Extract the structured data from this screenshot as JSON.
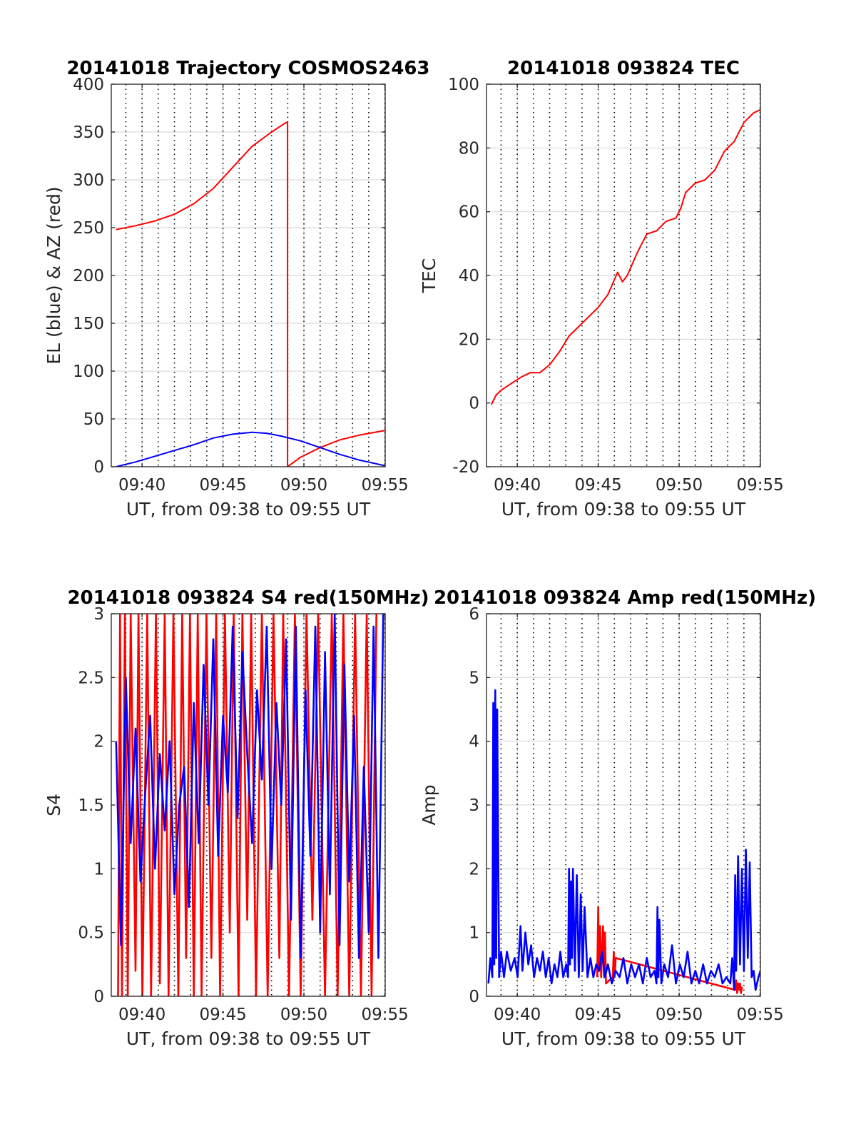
{
  "figure": {
    "colors": {
      "red": "#ff0000",
      "blue": "#0000ff",
      "grid": "#dcdcdc",
      "axis": "#262626"
    }
  },
  "chart_data": [
    {
      "id": "trajectory",
      "type": "line",
      "title": "20141018 Trajectory COSMOS2463",
      "xlabel": "UT, from 09:38 to 09:55 UT",
      "ylabel": "EL (blue) & AZ (red)",
      "xlim": [
        9.635,
        9.917
      ],
      "ylim": [
        0,
        400
      ],
      "yticks": [
        0,
        50,
        100,
        150,
        200,
        250,
        300,
        350,
        400
      ],
      "xticks": [
        9.6667,
        9.75,
        9.8333,
        9.9167
      ],
      "xticklabels": [
        "09:40",
        "09:45",
        "09:50",
        "09:55"
      ],
      "grid": true,
      "series": [
        {
          "color": "#ff0000",
          "role": "AZ",
          "x": [
            9.64,
            9.66,
            9.68,
            9.7,
            9.72,
            9.74,
            9.76,
            9.78,
            9.8,
            9.815,
            9.8165,
            9.8165,
            9.83,
            9.85,
            9.87,
            9.89,
            9.917
          ],
          "y": [
            248,
            252,
            257,
            264,
            275,
            291,
            313,
            335,
            350,
            360,
            360,
            0,
            10,
            20,
            28,
            33,
            38
          ]
        },
        {
          "color": "#0000ff",
          "role": "EL",
          "x": [
            9.64,
            9.66,
            9.68,
            9.7,
            9.72,
            9.74,
            9.76,
            9.78,
            9.795,
            9.81,
            9.83,
            9.85,
            9.87,
            9.89,
            9.917
          ],
          "y": [
            0,
            5,
            11,
            17,
            23,
            30,
            34,
            36,
            35,
            32,
            27,
            20,
            13,
            7,
            1
          ]
        }
      ]
    },
    {
      "id": "tec",
      "type": "line",
      "title": "20141018 093824 TEC",
      "xlabel": "UT, from 09:38 to 09:55 UT",
      "ylabel": "TEC",
      "xlim": [
        9.635,
        9.917
      ],
      "ylim": [
        -20,
        100
      ],
      "yticks": [
        -20,
        0,
        20,
        40,
        60,
        80,
        100
      ],
      "xticks": [
        9.6667,
        9.75,
        9.8333,
        9.9167
      ],
      "xticklabels": [
        "09:40",
        "09:45",
        "09:50",
        "09:55"
      ],
      "grid": true,
      "series": [
        {
          "color": "#ff0000",
          "x": [
            9.64,
            9.645,
            9.65,
            9.66,
            9.67,
            9.68,
            9.69,
            9.7,
            9.71,
            9.72,
            9.73,
            9.74,
            9.75,
            9.76,
            9.77,
            9.775,
            9.78,
            9.79,
            9.8,
            9.81,
            9.82,
            9.83,
            9.835,
            9.84,
            9.85,
            9.86,
            9.87,
            9.88,
            9.89,
            9.9,
            9.91,
            9.917
          ],
          "y": [
            -0.5,
            2.5,
            4,
            6,
            8,
            9.5,
            9.5,
            12,
            16,
            21,
            24,
            27,
            30,
            34,
            41,
            38,
            40,
            47,
            53,
            54,
            57,
            58,
            61,
            66,
            69,
            70,
            73,
            79,
            82,
            88,
            91,
            92
          ]
        }
      ]
    },
    {
      "id": "s4",
      "type": "line",
      "title": "20141018 093824 S4 red(150MHz)",
      "xlabel": "UT, from 09:38 to 09:55 UT",
      "ylabel": "S4",
      "xlim": [
        9.635,
        9.917
      ],
      "ylim": [
        0,
        3
      ],
      "yticks": [
        0,
        0.5,
        1,
        1.5,
        2,
        2.5,
        3
      ],
      "xticks": [
        9.6667,
        9.75,
        9.8333,
        9.9167
      ],
      "xticklabels": [
        "09:40",
        "09:45",
        "09:50",
        "09:55"
      ],
      "grid": true,
      "series": [
        {
          "color": "#ff0000",
          "x": [
            9.642,
            9.644,
            9.646,
            9.649,
            9.652,
            9.655,
            9.66,
            9.663,
            9.667,
            9.672,
            9.676,
            9.681,
            9.685,
            9.69,
            9.694,
            9.699,
            9.704,
            9.708,
            9.712,
            9.716,
            9.72,
            9.724,
            9.728,
            9.733,
            9.738,
            9.743,
            9.747,
            9.752,
            9.757,
            9.761,
            9.766,
            9.77,
            9.775,
            9.779,
            9.784,
            9.79,
            9.796,
            9.802,
            9.808,
            9.812,
            9.818,
            9.824,
            9.83,
            9.836,
            9.842,
            9.848,
            9.855,
            9.862,
            9.868,
            9.874,
            9.88,
            9.886,
            9.892,
            9.898,
            9.903,
            9.908
          ],
          "y": [
            0,
            3,
            0,
            3,
            0,
            3,
            0.2,
            3,
            0,
            3,
            0,
            3,
            0.1,
            3,
            0,
            3,
            0,
            3,
            0.3,
            3,
            0,
            3,
            0,
            3,
            0.3,
            3,
            0,
            3,
            0.5,
            3,
            0,
            3,
            0.6,
            3,
            0,
            3,
            0,
            3,
            0.3,
            3,
            0,
            3,
            0,
            3,
            0.6,
            3,
            0,
            3,
            0,
            3,
            0,
            3,
            0,
            3,
            0,
            3
          ]
        },
        {
          "color": "#0000ff",
          "x": [
            9.64,
            9.645,
            9.65,
            9.655,
            9.66,
            9.665,
            9.67,
            9.675,
            9.68,
            9.685,
            9.69,
            9.695,
            9.7,
            9.705,
            9.71,
            9.715,
            9.72,
            9.725,
            9.73,
            9.735,
            9.74,
            9.745,
            9.75,
            9.755,
            9.76,
            9.765,
            9.77,
            9.775,
            9.78,
            9.785,
            9.79,
            9.795,
            9.8,
            9.805,
            9.81,
            9.815,
            9.82,
            9.825,
            9.83,
            9.835,
            9.84,
            9.845,
            9.85,
            9.855,
            9.86,
            9.865,
            9.87,
            9.875,
            9.88,
            9.885,
            9.89,
            9.895,
            9.9,
            9.905,
            9.91,
            9.915
          ],
          "y": [
            2.0,
            0.4,
            2.5,
            1.2,
            2.1,
            0.9,
            1.6,
            2.2,
            1.0,
            1.9,
            1.3,
            2.0,
            0.8,
            1.5,
            1.8,
            0.7,
            2.3,
            1.2,
            2.6,
            1.5,
            2.8,
            1.1,
            2.2,
            1.6,
            2.9,
            1.4,
            2.7,
            1.9,
            1.2,
            2.4,
            1.7,
            2.9,
            1.0,
            2.3,
            1.5,
            2.8,
            0.6,
            2.9,
            0.3,
            2.4,
            1.1,
            2.9,
            0.5,
            2.7,
            0.8,
            3.0,
            0.4,
            2.6,
            0.9,
            2.2,
            0.3,
            1.8,
            0.5,
            2.9,
            0.3,
            3.0
          ]
        }
      ]
    },
    {
      "id": "amp",
      "type": "line",
      "title": "20141018 093824 Amp red(150MHz)",
      "xlabel": "UT, from 09:38 to 09:55 UT",
      "ylabel": "Amp",
      "xlim": [
        9.635,
        9.917
      ],
      "ylim": [
        0,
        6
      ],
      "yticks": [
        0,
        1,
        2,
        3,
        4,
        5,
        6
      ],
      "xticks": [
        9.6667,
        9.75,
        9.8333,
        9.9167
      ],
      "xticklabels": [
        "09:40",
        "09:45",
        "09:50",
        "09:55"
      ],
      "grid": true,
      "series": [
        {
          "color": "#ff0000",
          "x": [
            9.749,
            9.75,
            9.751,
            9.752,
            9.753,
            9.755,
            9.756,
            9.757,
            9.758,
            9.765,
            9.766,
            9.767,
            9.768,
            9.891,
            9.892,
            9.893,
            9.894,
            9.895,
            9.896,
            9.897,
            9.898
          ],
          "y": [
            0.3,
            1.4,
            0.4,
            1.1,
            0.3,
            1.1,
            0.3,
            1.0,
            0.2,
            0.3,
            0.7,
            0.3,
            0.6,
            0.1,
            0.25,
            0.05,
            0.2,
            0.1,
            0.2,
            0.05,
            0.15
          ]
        },
        {
          "color": "#0000ff",
          "x": [
            9.637,
            9.639,
            9.641,
            9.642,
            9.643,
            9.644,
            9.645,
            9.646,
            9.648,
            9.65,
            9.653,
            9.656,
            9.66,
            9.664,
            9.667,
            9.67,
            9.672,
            9.675,
            9.678,
            9.681,
            9.684,
            9.687,
            9.69,
            9.693,
            9.696,
            9.699,
            9.702,
            9.705,
            9.708,
            9.711,
            9.714,
            9.717,
            9.719,
            9.72,
            9.721,
            9.722,
            9.723,
            9.724,
            9.726,
            9.728,
            9.73,
            9.732,
            9.734,
            9.736,
            9.739,
            9.742,
            9.745,
            9.748,
            9.751,
            9.754,
            9.757,
            9.76,
            9.764,
            9.768,
            9.772,
            9.776,
            9.78,
            9.784,
            9.788,
            9.792,
            9.796,
            9.8,
            9.804,
            9.808,
            9.81,
            9.811,
            9.812,
            9.813,
            9.815,
            9.818,
            9.822,
            9.826,
            9.83,
            9.834,
            9.838,
            9.842,
            9.846,
            9.85,
            9.854,
            9.858,
            9.862,
            9.866,
            9.87,
            9.874,
            9.878,
            9.882,
            9.886,
            9.888,
            9.89,
            9.891,
            9.892,
            9.894,
            9.896,
            9.898,
            9.9,
            9.902,
            9.904,
            9.906,
            9.908,
            9.91,
            9.912,
            9.915,
            9.917
          ],
          "y": [
            0.2,
            0.6,
            0.3,
            4.6,
            0.5,
            4.8,
            0.6,
            4.5,
            0.3,
            0.7,
            0.3,
            0.7,
            0.4,
            0.6,
            0.3,
            1.1,
            0.4,
            1.0,
            0.5,
            0.8,
            0.3,
            0.6,
            0.4,
            0.7,
            0.3,
            0.6,
            0.2,
            0.5,
            0.3,
            0.7,
            0.3,
            0.5,
            0.3,
            2.0,
            0.5,
            1.8,
            0.6,
            2.0,
            0.4,
            1.9,
            0.3,
            1.6,
            0.4,
            1.4,
            0.3,
            0.6,
            0.3,
            0.5,
            0.4,
            0.7,
            0.3,
            0.5,
            0.2,
            0.4,
            0.3,
            0.6,
            0.2,
            0.5,
            0.3,
            0.5,
            0.2,
            0.6,
            0.3,
            0.4,
            0.2,
            1.4,
            0.3,
            1.2,
            0.2,
            0.5,
            0.3,
            0.8,
            0.2,
            0.5,
            0.3,
            0.7,
            0.2,
            0.4,
            0.2,
            0.5,
            0.2,
            0.4,
            0.3,
            0.5,
            0.2,
            0.3,
            0.2,
            0.6,
            0.1,
            1.9,
            0.4,
            2.2,
            0.5,
            2.0,
            0.4,
            2.3,
            0.6,
            2.1,
            0.3,
            0.4,
            0.1,
            0.3,
            0.4
          ]
        }
      ]
    }
  ]
}
